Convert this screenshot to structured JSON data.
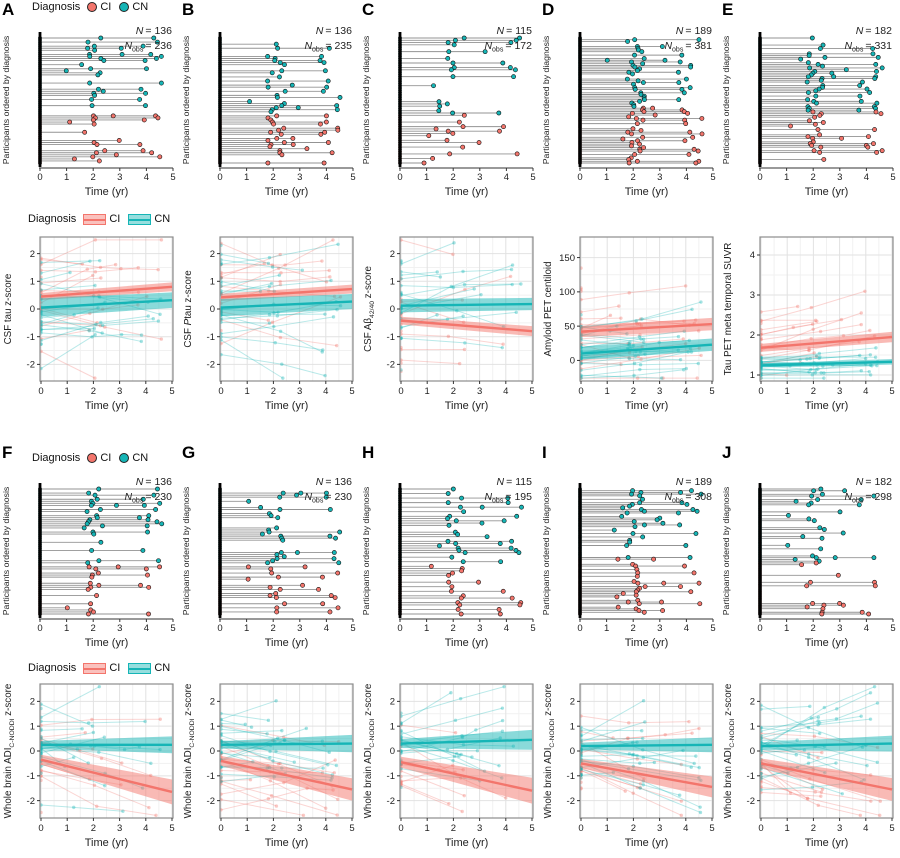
{
  "figure": {
    "time_xlabel": "Time (yr)",
    "top_ylabel": "Participants ordered by diagnosis",
    "n_label": "N",
    "obs_label": "obs",
    "eq": "=",
    "xticks": [
      0,
      1,
      2,
      3,
      4,
      5
    ],
    "legend_points": {
      "title": "Diagnosis",
      "items": [
        {
          "label": "CI",
          "color": "#F3756C"
        },
        {
          "label": "CN",
          "color": "#16B5B6"
        }
      ]
    },
    "legend_ribbons": {
      "title": "Diagnosis",
      "items": [
        {
          "label": "CI",
          "color": "#F3756C"
        },
        {
          "label": "CN",
          "color": "#16B5B6"
        }
      ]
    }
  },
  "colors": {
    "ci": "#F3756C",
    "cn": "#16B5B6",
    "connector": "#4D4D4D",
    "dot_stroke": "#111111",
    "axis": "#333333",
    "grid_major": "#E2E2E2",
    "grid_minor": "#F1F1F1",
    "panel_border": "#8C8C8C"
  },
  "chart_data": [
    {
      "letter": "A",
      "n": 136,
      "nobs": 236,
      "show_legends": true,
      "top": {
        "type": "timeline-lollipop",
        "rows": 62,
        "frac_cn": 0.6,
        "obs_ratio": 1.74,
        "seed": 101,
        "xlabel": "Time (yr)",
        "ylabel": "Participants ordered by diagnosis",
        "xlim": [
          0,
          5
        ]
      },
      "bottom": {
        "type": "spaghetti",
        "ylabel": [
          {
            "t": "CSF tau z-score"
          }
        ],
        "yticks": [
          -2,
          -1,
          0,
          1,
          2
        ],
        "ylim": [
          -2.6,
          2.6
        ],
        "seed": 201,
        "trend": {
          "ci": {
            "y0": 0.45,
            "y1": 0.8,
            "w0": 0.13,
            "w1": 0.16
          },
          "cn": {
            "y0": 0.05,
            "y1": 0.32,
            "w0": 0.33,
            "w1": 0.28
          }
        },
        "ind": {
          "ci": {
            "sd": 0.95,
            "slope_sd": 0.22
          },
          "cn": {
            "sd": 0.95,
            "slope_sd": 0.22
          }
        }
      }
    },
    {
      "letter": "B",
      "n": 136,
      "nobs": 235,
      "show_legends": false,
      "top": {
        "type": "timeline-lollipop",
        "rows": 62,
        "frac_cn": 0.6,
        "obs_ratio": 1.73,
        "seed": 102,
        "xlabel": "Time (yr)",
        "ylabel": "Participants ordered by diagnosis",
        "xlim": [
          0,
          5
        ]
      },
      "bottom": {
        "type": "spaghetti",
        "ylabel": [
          {
            "t": "CSF "
          },
          {
            "t": "P",
            "italic": true
          },
          {
            "t": "tau z-score"
          }
        ],
        "yticks": [
          -2,
          -1,
          0,
          1,
          2
        ],
        "ylim": [
          -2.6,
          2.6
        ],
        "seed": 202,
        "trend": {
          "ci": {
            "y0": 0.42,
            "y1": 0.72,
            "w0": 0.13,
            "w1": 0.16
          },
          "cn": {
            "y0": 0.05,
            "y1": 0.27,
            "w0": 0.31,
            "w1": 0.27
          }
        },
        "ind": {
          "ci": {
            "sd": 0.95,
            "slope_sd": 0.22
          },
          "cn": {
            "sd": 0.95,
            "slope_sd": 0.22
          }
        }
      }
    },
    {
      "letter": "C",
      "n": 115,
      "nobs": 172,
      "show_legends": false,
      "top": {
        "type": "timeline-lollipop",
        "rows": 56,
        "frac_cn": 0.6,
        "obs_ratio": 1.5,
        "seed": 103,
        "xlabel": "Time (yr)",
        "ylabel": "Participants ordered by diagnosis",
        "xlim": [
          0,
          5
        ]
      },
      "bottom": {
        "type": "spaghetti",
        "ylabel": [
          {
            "t": "CSF Aβ"
          },
          {
            "t": "42/40",
            "sub": true
          },
          {
            "t": " z-score"
          }
        ],
        "yticks": [
          -2,
          -1,
          0,
          1,
          2
        ],
        "ylim": [
          -2.6,
          2.6
        ],
        "seed": 203,
        "trend": {
          "ci": {
            "y0": -0.42,
            "y1": -0.8,
            "w0": 0.14,
            "w1": 0.18
          },
          "cn": {
            "y0": 0.12,
            "y1": 0.18,
            "w0": 0.24,
            "w1": 0.22
          }
        },
        "ind": {
          "ci": {
            "sd": 0.9,
            "slope_sd": 0.2
          },
          "cn": {
            "sd": 0.95,
            "slope_sd": 0.2
          }
        }
      }
    },
    {
      "letter": "D",
      "n": 189,
      "nobs": 381,
      "show_legends": false,
      "top": {
        "type": "timeline-lollipop",
        "rows": 74,
        "frac_cn": 0.55,
        "obs_ratio": 2.02,
        "seed": 104,
        "xlabel": "Time (yr)",
        "ylabel": "Participants ordered by diagnosis",
        "xlim": [
          0,
          5
        ]
      },
      "bottom": {
        "type": "spaghetti",
        "ylabel": [
          {
            "t": "Amyloid PET centiloid"
          }
        ],
        "yticks": [
          0,
          50,
          100,
          150
        ],
        "ylim": [
          -30,
          180
        ],
        "seed": 204,
        "trend": {
          "ci": {
            "y0": 42,
            "y1": 53,
            "w0": 8,
            "w1": 9
          },
          "cn": {
            "y0": 10,
            "y1": 23,
            "w0": 9,
            "w1": 9
          }
        },
        "ind": {
          "ci": {
            "sd": 42,
            "slope_sd": 4
          },
          "cn": {
            "sd": 22,
            "slope_sd": 4
          }
        }
      }
    },
    {
      "letter": "E",
      "n": 182,
      "nobs": 331,
      "show_legends": false,
      "top": {
        "type": "timeline-lollipop",
        "rows": 72,
        "frac_cn": 0.57,
        "obs_ratio": 1.82,
        "seed": 105,
        "xlabel": "Time (yr)",
        "ylabel": "Participants ordered by diagnosis",
        "xlim": [
          0,
          5
        ]
      },
      "bottom": {
        "type": "spaghetti",
        "ylabel": [
          {
            "t": "Tau PET meta temporal SUVR"
          }
        ],
        "yticks": [
          1,
          2,
          3,
          4
        ],
        "ylim": [
          0.85,
          4.45
        ],
        "seed": 205,
        "trend": {
          "ci": {
            "y0": 1.68,
            "y1": 1.95,
            "w0": 0.1,
            "w1": 0.13
          },
          "cn": {
            "y0": 1.24,
            "y1": 1.33,
            "w0": 0.05,
            "w1": 0.07
          }
        },
        "ind": {
          "ci": {
            "sd": 0.55,
            "slope_sd": 0.07
          },
          "cn": {
            "sd": 0.13,
            "slope_sd": 0.03
          }
        }
      }
    },
    {
      "letter": "F",
      "n": 136,
      "nobs": 230,
      "show_legends": true,
      "top": {
        "type": "timeline-lollipop",
        "rows": 62,
        "frac_cn": 0.6,
        "obs_ratio": 1.69,
        "seed": 106,
        "xlabel": "Time (yr)",
        "ylabel": "Participants ordered by diagnosis",
        "xlim": [
          0,
          5
        ]
      },
      "bottom": {
        "type": "spaghetti",
        "ylabel": [
          {
            "t": "Whole brain ADI"
          },
          {
            "t": "C-NODDI",
            "sub": true
          },
          {
            "t": " z-score"
          }
        ],
        "yticks": [
          -2,
          -1,
          0,
          1,
          2
        ],
        "ylim": [
          -2.7,
          2.7
        ],
        "seed": 206,
        "trend": {
          "ci": {
            "y0": -0.35,
            "y1": -1.65,
            "w0": 0.2,
            "w1": 0.5
          },
          "cn": {
            "y0": 0.25,
            "y1": 0.25,
            "w0": 0.16,
            "w1": 0.34
          }
        },
        "ind": {
          "ci": {
            "sd": 0.85,
            "slope_sd": 0.28
          },
          "cn": {
            "sd": 0.72,
            "slope_sd": 0.28
          }
        }
      }
    },
    {
      "letter": "G",
      "n": 136,
      "nobs": 230,
      "show_legends": false,
      "top": {
        "type": "timeline-lollipop",
        "rows": 62,
        "frac_cn": 0.6,
        "obs_ratio": 1.69,
        "seed": 107,
        "xlabel": "Time (yr)",
        "ylabel": "Participants ordered by diagnosis",
        "xlim": [
          0,
          5
        ]
      },
      "bottom": {
        "type": "spaghetti",
        "ylabel": [
          {
            "t": "Whole brain ADI"
          },
          {
            "t": "C-NODDI",
            "sub": true
          },
          {
            "t": " z-score"
          }
        ],
        "yticks": [
          -2,
          -1,
          0,
          1,
          2
        ],
        "ylim": [
          -2.7,
          2.7
        ],
        "seed": 207,
        "trend": {
          "ci": {
            "y0": -0.4,
            "y1": -1.55,
            "w0": 0.2,
            "w1": 0.45
          },
          "cn": {
            "y0": 0.25,
            "y1": 0.3,
            "w0": 0.15,
            "w1": 0.35
          }
        },
        "ind": {
          "ci": {
            "sd": 0.85,
            "slope_sd": 0.28
          },
          "cn": {
            "sd": 0.72,
            "slope_sd": 0.28
          }
        }
      }
    },
    {
      "letter": "H",
      "n": 115,
      "nobs": 195,
      "show_legends": false,
      "top": {
        "type": "timeline-lollipop",
        "rows": 56,
        "frac_cn": 0.6,
        "obs_ratio": 1.7,
        "seed": 108,
        "xlabel": "Time (yr)",
        "ylabel": "Participants ordered by diagnosis",
        "xlim": [
          0,
          5
        ]
      },
      "bottom": {
        "type": "spaghetti",
        "ylabel": [
          {
            "t": "Whole brain ADI"
          },
          {
            "t": "C-NODDI",
            "sub": true
          },
          {
            "t": " z-score"
          }
        ],
        "yticks": [
          -2,
          -1,
          0,
          1,
          2
        ],
        "ylim": [
          -2.7,
          2.7
        ],
        "seed": 208,
        "trend": {
          "ci": {
            "y0": -0.45,
            "y1": -1.6,
            "w0": 0.22,
            "w1": 0.52
          },
          "cn": {
            "y0": 0.3,
            "y1": 0.45,
            "w0": 0.18,
            "w1": 0.4
          }
        },
        "ind": {
          "ci": {
            "sd": 0.85,
            "slope_sd": 0.28
          },
          "cn": {
            "sd": 0.72,
            "slope_sd": 0.28
          }
        }
      }
    },
    {
      "letter": "I",
      "n": 189,
      "nobs": 308,
      "show_legends": false,
      "top": {
        "type": "timeline-lollipop",
        "rows": 74,
        "frac_cn": 0.55,
        "obs_ratio": 1.63,
        "seed": 109,
        "xlabel": "Time (yr)",
        "ylabel": "Participants ordered by diagnosis",
        "xlim": [
          0,
          5
        ]
      },
      "bottom": {
        "type": "spaghetti",
        "ylabel": [
          {
            "t": "Whole brain ADI"
          },
          {
            "t": "C-NODDI",
            "sub": true
          },
          {
            "t": " z-score"
          }
        ],
        "yticks": [
          -2,
          -1,
          0,
          1,
          2
        ],
        "ylim": [
          -2.7,
          2.7
        ],
        "seed": 209,
        "trend": {
          "ci": {
            "y0": -0.5,
            "y1": -1.45,
            "w0": 0.18,
            "w1": 0.42
          },
          "cn": {
            "y0": 0.2,
            "y1": 0.25,
            "w0": 0.14,
            "w1": 0.3
          }
        },
        "ind": {
          "ci": {
            "sd": 0.85,
            "slope_sd": 0.28
          },
          "cn": {
            "sd": 0.72,
            "slope_sd": 0.28
          }
        }
      }
    },
    {
      "letter": "J",
      "n": 182,
      "nobs": 298,
      "show_legends": false,
      "top": {
        "type": "timeline-lollipop",
        "rows": 72,
        "frac_cn": 0.57,
        "obs_ratio": 1.64,
        "seed": 110,
        "xlabel": "Time (yr)",
        "ylabel": "Participants ordered by diagnosis",
        "xlim": [
          0,
          5
        ]
      },
      "bottom": {
        "type": "spaghetti",
        "ylabel": [
          {
            "t": "Whole brain ADI"
          },
          {
            "t": "C-NODDI",
            "sub": true
          },
          {
            "t": " z-score"
          }
        ],
        "yticks": [
          -2,
          -1,
          0,
          1,
          2
        ],
        "ylim": [
          -2.7,
          2.7
        ],
        "seed": 210,
        "trend": {
          "ci": {
            "y0": -0.5,
            "y1": -1.55,
            "w0": 0.2,
            "w1": 0.46
          },
          "cn": {
            "y0": 0.2,
            "y1": 0.3,
            "w0": 0.15,
            "w1": 0.32
          }
        },
        "ind": {
          "ci": {
            "sd": 0.85,
            "slope_sd": 0.28
          },
          "cn": {
            "sd": 0.72,
            "slope_sd": 0.28
          }
        }
      }
    }
  ]
}
